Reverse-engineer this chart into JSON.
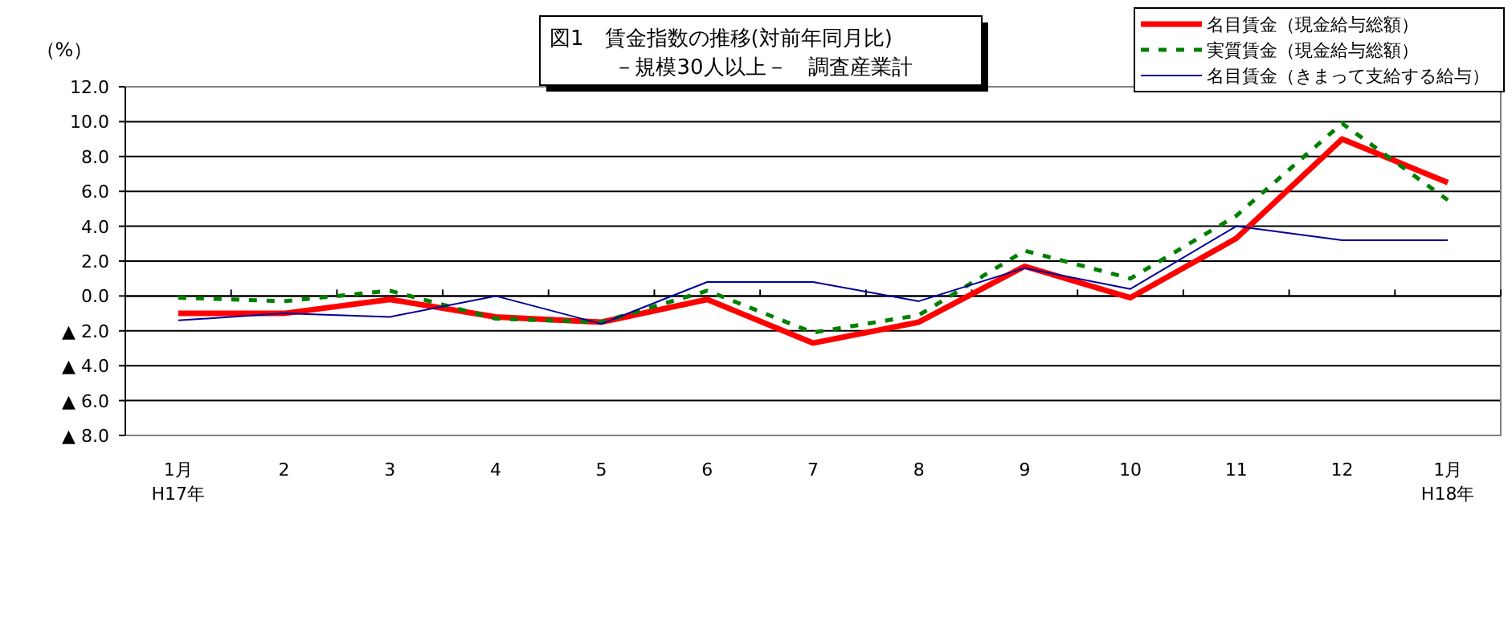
{
  "chart_data": {
    "type": "line",
    "title": "図1　賃金指数の推移(対前年同月比)",
    "subtitle": "－規模30人以上－　調査産業計",
    "ylabel": "（%）",
    "categories": [
      "1月\nH17年",
      "2",
      "3",
      "4",
      "5",
      "6",
      "7",
      "8",
      "9",
      "10",
      "11",
      "12",
      "1月\nH18年"
    ],
    "series": [
      {
        "name": "名目賃金（現金給与総額）",
        "color": "#ff0000",
        "line_style": "solid",
        "values": [
          -1.0,
          -1.0,
          -0.2,
          -1.2,
          -1.5,
          -0.2,
          -2.7,
          -1.5,
          1.7,
          -0.1,
          3.3,
          9.0,
          6.5
        ]
      },
      {
        "name": "実質賃金（現金給与総額）",
        "color": "#008000",
        "line_style": "dashed",
        "values": [
          -0.1,
          -0.3,
          0.3,
          -1.3,
          -1.5,
          0.3,
          -2.1,
          -1.1,
          2.6,
          1.0,
          4.6,
          9.9,
          5.5
        ]
      },
      {
        "name": "名目賃金（きまって支給する給与）",
        "color": "#000099",
        "line_style": "solid",
        "values": [
          -1.4,
          -1.0,
          -1.2,
          0.0,
          -1.6,
          0.8,
          0.8,
          -0.3,
          1.6,
          0.4,
          4.0,
          3.2,
          3.2
        ]
      }
    ],
    "ylim": [
      -8,
      12
    ],
    "yticks": [
      {
        "value": 12,
        "label": "12.0"
      },
      {
        "value": 10,
        "label": "10.0"
      },
      {
        "value": 8,
        "label": "8.0"
      },
      {
        "value": 6,
        "label": "6.0"
      },
      {
        "value": 4,
        "label": "4.0"
      },
      {
        "value": 2,
        "label": "2.0"
      },
      {
        "value": 0,
        "label": "0.0"
      },
      {
        "value": -2,
        "label": "▲ 2.0"
      },
      {
        "value": -4,
        "label": "▲ 4.0"
      },
      {
        "value": -6,
        "label": "▲ 6.0"
      },
      {
        "value": -8,
        "label": "▲ 8.0"
      }
    ],
    "grid": "y",
    "legend": "top right"
  }
}
